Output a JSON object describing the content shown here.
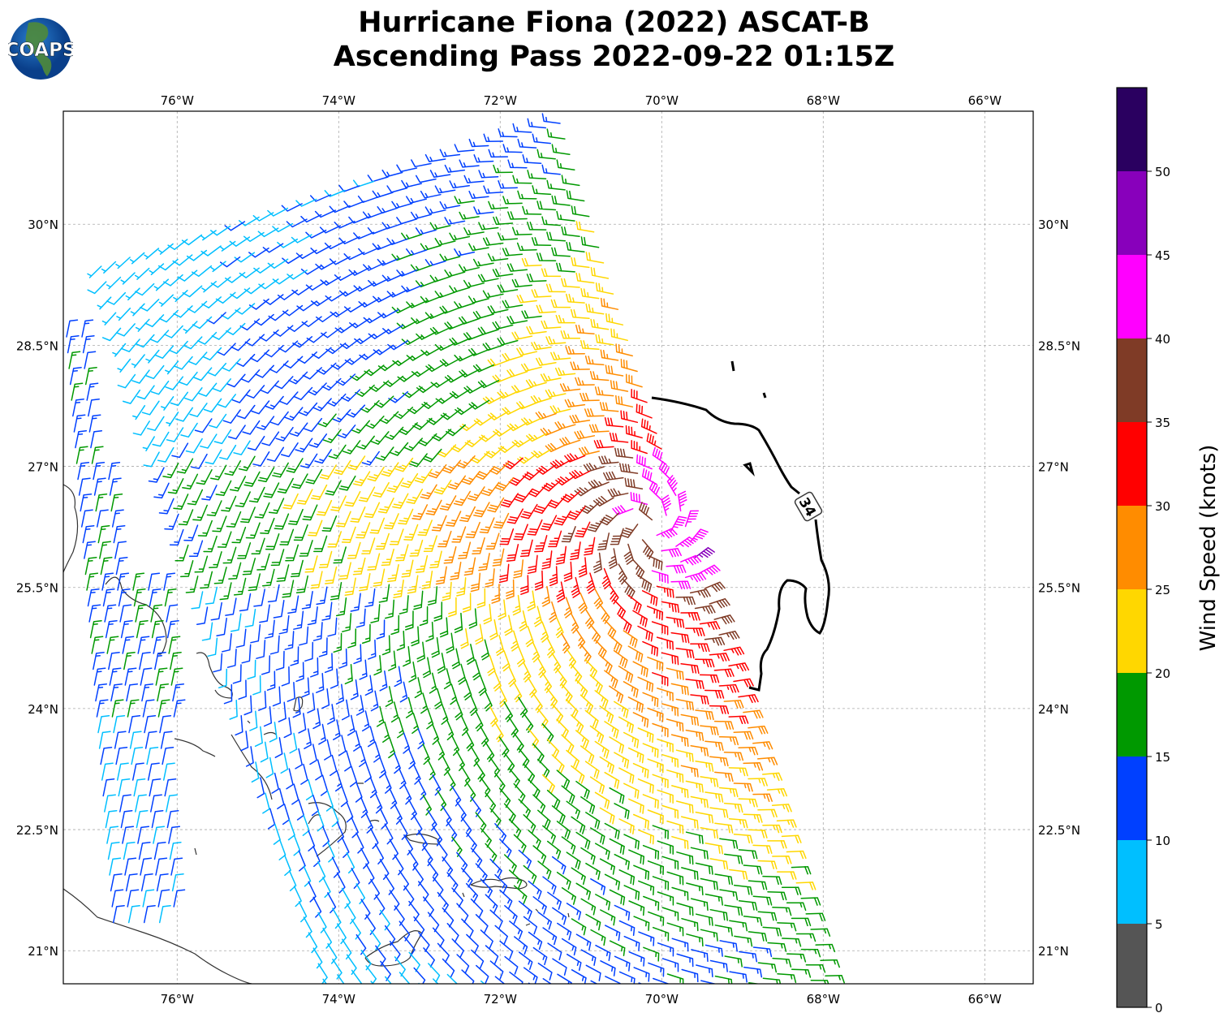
{
  "title_line1": "Hurricane Fiona (2022) ASCAT-B",
  "title_line2": "Ascending Pass 2022-09-22 01:15Z",
  "logo_text": "COAPS",
  "map": {
    "lon_range": [
      -77.41,
      -65.4
    ],
    "lat_range": [
      20.59,
      31.4
    ],
    "lon_ticks": [
      {
        "value": -76,
        "label": "76°W"
      },
      {
        "value": -74,
        "label": "74°W"
      },
      {
        "value": -72,
        "label": "72°W"
      },
      {
        "value": -70,
        "label": "70°W"
      },
      {
        "value": -68,
        "label": "68°W"
      },
      {
        "value": -66,
        "label": "66°W"
      }
    ],
    "lat_ticks": [
      {
        "value": 30,
        "label": "30°N"
      },
      {
        "value": 28.5,
        "label": "28.5°N"
      },
      {
        "value": 27,
        "label": "27°N"
      },
      {
        "value": 25.5,
        "label": "25.5°N"
      },
      {
        "value": 24,
        "label": "24°N"
      },
      {
        "value": 22.5,
        "label": "22.5°N"
      },
      {
        "value": 21,
        "label": "21°N"
      }
    ],
    "contour_label": "34"
  },
  "colorbar": {
    "label": "Wind Speed (knots)",
    "bounds": [
      0,
      5,
      10,
      15,
      20,
      25,
      30,
      35,
      40,
      45,
      50,
      55
    ],
    "tick_labels": [
      "0",
      "5",
      "10",
      "15",
      "20",
      "25",
      "30",
      "35",
      "40",
      "45",
      "50"
    ],
    "colors": [
      "#555555",
      "#00bfff",
      "#0040ff",
      "#009900",
      "#ffd700",
      "#ff8c00",
      "#ff0000",
      "#7f3b26",
      "#ff00ff",
      "#8800bb",
      "#2a0060"
    ]
  }
}
